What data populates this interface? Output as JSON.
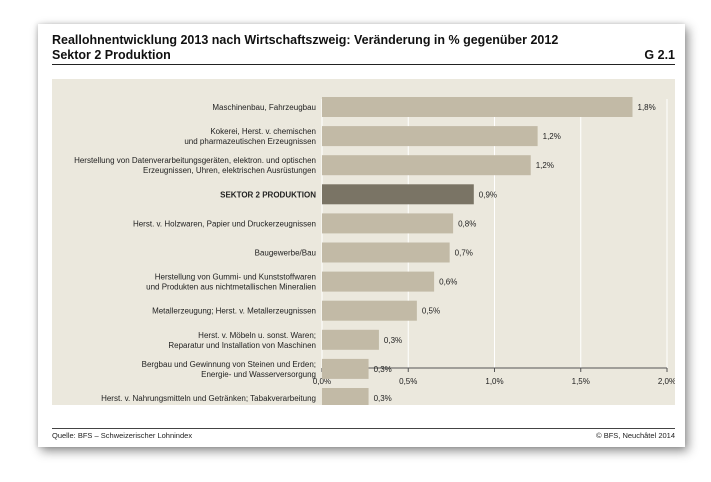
{
  "header": {
    "title": "Reallohnentwicklung 2013 nach Wirtschaftszweig: Veränderung in % gegenüber 2012",
    "subtitle": "Sektor 2 Produktion",
    "code": "G 2.1"
  },
  "footer": {
    "source": "Quelle: BFS – Schweizerischer Lohnindex",
    "copyright": "© BFS, Neuchâtel 2014"
  },
  "colors": {
    "background": "#ebe8dd",
    "bar": "#c2baa6",
    "highlight": "#7a7465",
    "grid": "#ffffff"
  },
  "chart_data": {
    "type": "bar",
    "orientation": "horizontal",
    "categories": [
      [
        "Maschinenbau, Fahrzeugbau"
      ],
      [
        "Kokerei, Herst. v. chemischen",
        "und pharmazeutischen Erzeugnissen"
      ],
      [
        "Herstellung von Datenverarbeitungsgeräten, elektron. und optischen",
        "Erzeugnissen, Uhren, elektrischen Ausrüstungen"
      ],
      [
        "SEKTOR 2 PRODUKTION"
      ],
      [
        "Herst. v. Holzwaren, Papier und Druckerzeugnissen"
      ],
      [
        "Baugewerbe/Bau"
      ],
      [
        "Herstellung von Gummi- und Kunststoffwaren",
        "und Produkten aus nichtmetallischen Mineralien"
      ],
      [
        "Metallerzeugung; Herst. v. Metallerzeugnissen"
      ],
      [
        "Herst. v. Möbeln u. sonst. Waren;",
        "Reparatur und Installation von Maschinen"
      ],
      [
        "Bergbau und Gewinnung von Steinen und Erden;",
        "Energie- und Wasserversorgung"
      ],
      [
        "Herst. v. Nahrungsmitteln und Getränken; Tabakverarbeitung"
      ]
    ],
    "values": [
      1.8,
      1.25,
      1.21,
      0.88,
      0.76,
      0.74,
      0.65,
      0.55,
      0.33,
      0.27,
      0.27
    ],
    "value_labels": [
      "1,8%",
      "1,2%",
      "1,2%",
      "0,9%",
      "0,8%",
      "0,7%",
      "0,6%",
      "0,5%",
      "0,3%",
      "0,3%",
      "0,3%"
    ],
    "highlight_index": 3,
    "xlim": [
      0,
      2.0
    ],
    "xticks": [
      0,
      0.5,
      1.0,
      1.5,
      2.0
    ],
    "xtick_labels": [
      "0,0%",
      "0,5%",
      "1,0%",
      "1,5%",
      "2,0%"
    ],
    "grid": true
  }
}
